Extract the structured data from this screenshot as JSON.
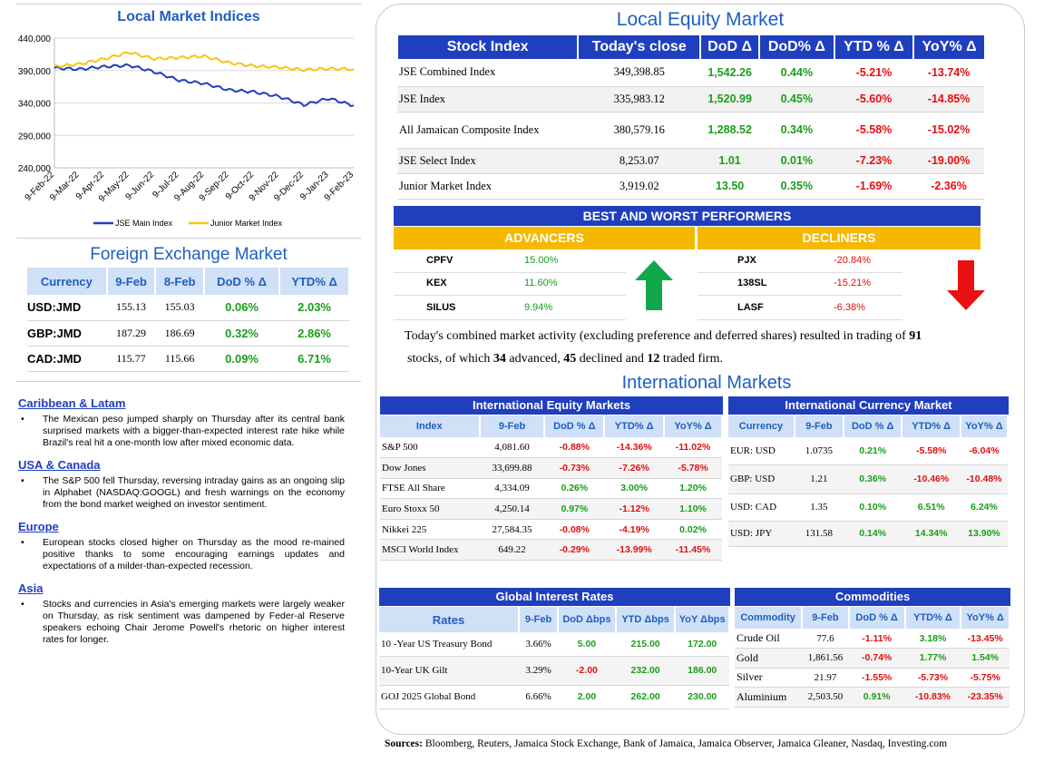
{
  "local_indices": {
    "title": "Local Market Indices",
    "y_ticks": [
      "440,000",
      "390,000",
      "340,000",
      "290,000",
      "240,000"
    ],
    "x_ticks": [
      "9-Feb-22",
      "9-Mar-22",
      "9-Apr-22",
      "9-May-22",
      "9-Jun-22",
      "9-Jul-22",
      "9-Aug-22",
      "9-Sep-22",
      "9-Oct-22",
      "9-Nov-22",
      "9-Dec-22",
      "9-Jan-23",
      "9-Feb-23"
    ],
    "legend_main": "JSE Main Index",
    "legend_junior": "Junior Market Index",
    "color_main": "#1f3fbf",
    "color_junior": "#f5c518"
  },
  "chart_data": {
    "type": "line",
    "x": [
      "9-Feb-22",
      "9-Mar-22",
      "9-Apr-22",
      "9-May-22",
      "9-Jun-22",
      "9-Jul-22",
      "9-Aug-22",
      "9-Sep-22",
      "9-Oct-22",
      "9-Nov-22",
      "9-Dec-22",
      "9-Jan-23",
      "9-Feb-23"
    ],
    "series": [
      {
        "name": "JSE Main Index",
        "values": [
          394000,
          392000,
          396000,
          398000,
          388000,
          375000,
          370000,
          360000,
          357000,
          350000,
          337000,
          347000,
          336000
        ]
      },
      {
        "name": "Junior Market Index",
        "values": [
          396000,
          400000,
          408000,
          418000,
          408000,
          410000,
          412000,
          402000,
          397000,
          395000,
          391000,
          393000,
          392000
        ]
      }
    ],
    "ylim": [
      240000,
      440000
    ],
    "grid": true,
    "legend": "bottom"
  },
  "fx": {
    "title": "Foreign Exchange Market",
    "headers": [
      "Currency",
      "9-Feb",
      "8-Feb",
      "DoD % Δ",
      "YTD% Δ"
    ],
    "rows": [
      [
        "USD:JMD",
        "155.13",
        "155.03",
        "0.06%",
        "2.03%"
      ],
      [
        "GBP:JMD",
        "187.29",
        "186.69",
        "0.32%",
        "2.86%"
      ],
      [
        "CAD:JMD",
        "115.77",
        "115.66",
        "0.09%",
        "6.71%"
      ]
    ]
  },
  "news": [
    {
      "region": "Caribbean & Latam",
      "text": "The Mexican peso jumped sharply on Thursday after its central bank surprised markets with a bigger-than-expected interest rate hike while Brazil's real hit a one-month low after mixed economic data."
    },
    {
      "region": "USA & Canada",
      "text": "The S&P 500 fell Thursday, reversing intraday gains as an ongoing slip in Alphabet (NASDAQ:GOOGL) and fresh warnings on the economy from the bond market weighed on investor sentiment."
    },
    {
      "region": "Europe",
      "text": "European stocks closed higher on Thursday as the mood re-mained positive thanks to some encouraging earnings updates and expectations of a milder-than-expected recession."
    },
    {
      "region": "Asia",
      "text": "Stocks and currencies in Asia's emerging markets were largely weaker on Thursday, as risk sentiment was dampened by Feder-al Reserve speakers echoing Chair Jerome Powell's rhetoric on higher interest rates for longer."
    }
  ],
  "equity": {
    "title": "Local Equity Market",
    "headers": [
      "Stock Index",
      "Today's close",
      "DoD  Δ",
      "DoD% Δ",
      "YTD % Δ",
      "YoY% Δ"
    ],
    "rows": [
      [
        "JSE Combined Index",
        "349,398.85",
        "1,542.26",
        "0.44%",
        "-5.21%",
        "-13.74%"
      ],
      [
        "JSE Index",
        "335,983.12",
        "1,520.99",
        "0.45%",
        "-5.60%",
        "-14.85%"
      ],
      [
        "All Jamaican Composite Index",
        "380,579.16",
        "1,288.52",
        "0.34%",
        "-5.58%",
        "-15.02%"
      ],
      [
        "JSE Select Index",
        "8,253.07",
        "1.01",
        "0.01%",
        "-7.23%",
        "-19.00%"
      ],
      [
        "Junior Market Index",
        "3,919.02",
        "13.50",
        "0.35%",
        "-1.69%",
        "-2.36%"
      ]
    ]
  },
  "performers": {
    "title": "BEST AND WORST PERFORMERS",
    "advancers_label": "ADVANCERS",
    "decliners_label": "DECLINERS",
    "advancers": [
      [
        "CPFV",
        "15.00%"
      ],
      [
        "KEX",
        "11.60%"
      ],
      [
        "SILUS",
        "9.94%"
      ]
    ],
    "decliners": [
      [
        "PJX",
        "-20.84%"
      ],
      [
        "138SL",
        "-15.21%"
      ],
      [
        "LASF",
        "-6.38%"
      ]
    ],
    "summary_pre": "Today's combined market activity (excluding preference and deferred shares) resulted in trading of ",
    "total": "91",
    "summary_mid1": "stocks, of which ",
    "advanced": "34",
    "summary_mid2": " advanced, ",
    "declined": "45",
    "summary_mid3": " declined and ",
    "firm": "12",
    "summary_end": " traded firm."
  },
  "intl": {
    "title": "International Markets",
    "equity": {
      "title": "International Equity Markets",
      "headers": [
        "Index",
        "9-Feb",
        "DoD % Δ",
        "YTD% Δ",
        "YoY% Δ"
      ],
      "rows": [
        [
          "S&P 500",
          "4,081.60",
          "-0.88%",
          "-14.36%",
          "-11.02%"
        ],
        [
          "Dow Jones",
          "33,699.88",
          "-0.73%",
          "-7.26%",
          "-5.78%"
        ],
        [
          "FTSE All Share",
          "4,334.09",
          "0.26%",
          "3.00%",
          "1.20%"
        ],
        [
          "Euro Stoxx 50",
          "4,250.14",
          "0.97%",
          "-1.12%",
          "1.10%"
        ],
        [
          "Nikkei 225",
          "27,584.35",
          "-0.08%",
          "-4.19%",
          "0.02%"
        ],
        [
          "MSCI World Index",
          "649.22",
          "-0.29%",
          "-13.99%",
          "-11.45%"
        ]
      ]
    },
    "currency": {
      "title": "International Currency Market",
      "headers": [
        "Currency",
        "9-Feb",
        "DoD % Δ",
        "YTD% Δ",
        "YoY% Δ"
      ],
      "rows": [
        [
          "EUR: USD",
          "1.0735",
          "0.21%",
          "-5.58%",
          "-6.04%"
        ],
        [
          "GBP: USD",
          "1.21",
          "0.36%",
          "-10.46%",
          "-10.48%"
        ],
        [
          "USD: CAD",
          "1.35",
          "0.10%",
          "6.51%",
          "6.24%"
        ],
        [
          "USD: JPY",
          "131.58",
          "0.14%",
          "14.34%",
          "13.90%"
        ]
      ]
    },
    "rates": {
      "title": "Global Interest Rates",
      "headers": [
        "Rates",
        "9-Feb",
        "DoD Δbps",
        "YTD Δbps",
        "YoY Δbps"
      ],
      "rows": [
        [
          "10 -Year US Treasury Bond",
          "3.66%",
          "5.00",
          "215.00",
          "172.00"
        ],
        [
          "10-Year UK Gilt",
          "3.29%",
          "-2.00",
          "232.00",
          "186.00"
        ],
        [
          "GOJ 2025 Global Bond",
          "6.66%",
          "2.00",
          "262.00",
          "230.00"
        ]
      ]
    },
    "commodities": {
      "title": "Commodities",
      "headers": [
        "Commodity",
        "9-Feb",
        "DoD % Δ",
        "YTD% Δ",
        "YoY% Δ"
      ],
      "rows": [
        [
          "Crude Oil",
          "77.6",
          "-1.11%",
          "3.18%",
          "-13.45%"
        ],
        [
          "Gold",
          "1,861.56",
          "-0.74%",
          "1.77%",
          "1.54%"
        ],
        [
          "Silver",
          "21.97",
          "-1.55%",
          "-5.73%",
          "-5.75%"
        ],
        [
          "Aluminium",
          "2,503.50",
          "0.91%",
          "-10.83%",
          "-23.35%"
        ]
      ]
    }
  },
  "sources": {
    "label": "Sources:",
    "text": " Bloomberg, Reuters, Jamaica Stock Exchange, Bank of Jamaica, Jamaica Observer, Jamaica Gleaner, Nasdaq, Investing.com"
  }
}
